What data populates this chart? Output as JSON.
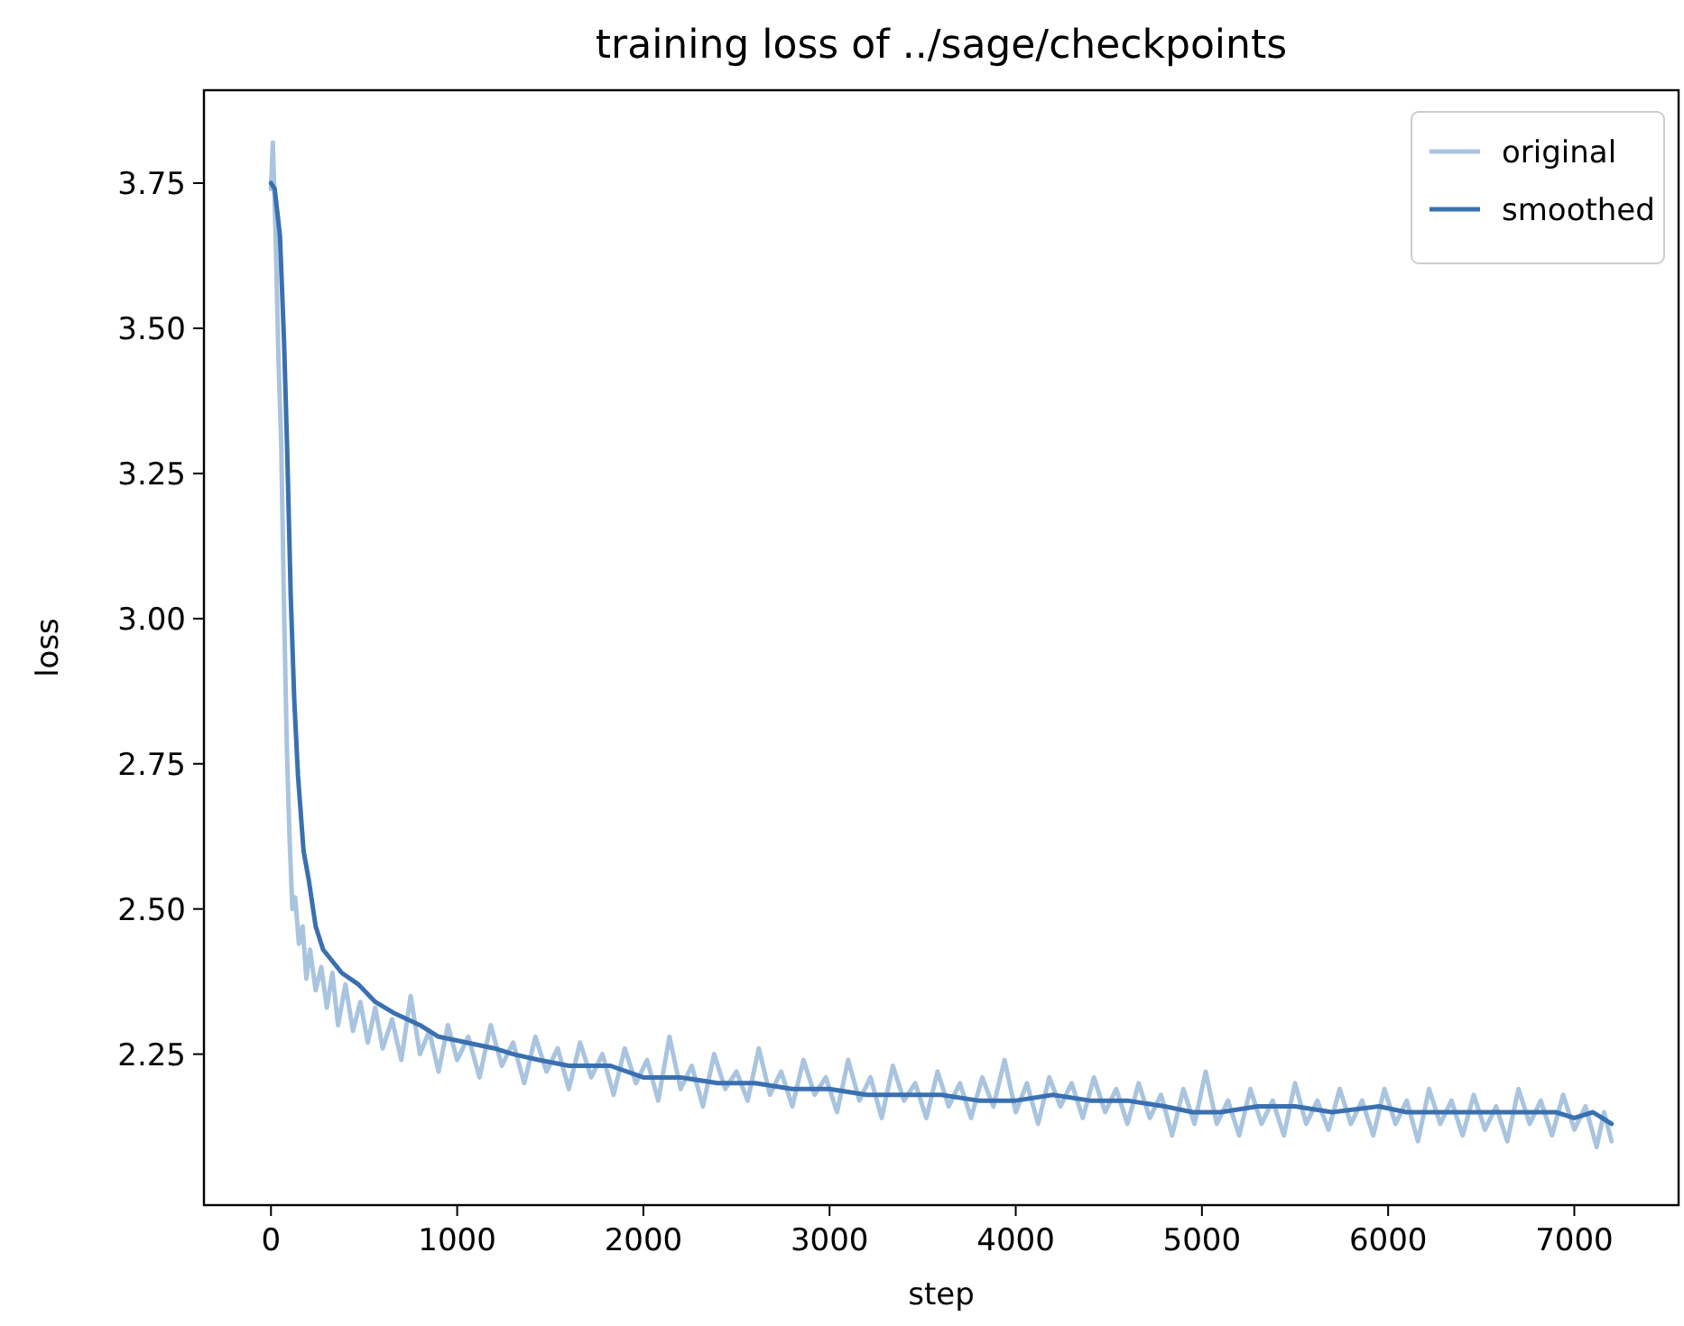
{
  "chart_data": {
    "type": "line",
    "title": "training loss of ../sage/checkpoints",
    "xlabel": "step",
    "ylabel": "loss",
    "xlim": [
      -360,
      7560
    ],
    "ylim": [
      1.99,
      3.91
    ],
    "xticks": [
      0,
      1000,
      2000,
      3000,
      4000,
      5000,
      6000,
      7000
    ],
    "yticks": [
      2.25,
      {
        "value": 2.5,
        "label": "2.50"
      },
      2.75,
      {
        "value": 3.0,
        "label": "3.00"
      },
      3.25,
      {
        "value": 3.5,
        "label": "3.50"
      },
      3.75
    ],
    "grid": false,
    "legend": "top right",
    "marker": "none",
    "line_style": "solid",
    "series": [
      {
        "name": "original",
        "color": "#a9c4de",
        "x": [
          0,
          10,
          25,
          40,
          55,
          70,
          85,
          100,
          115,
          130,
          150,
          170,
          190,
          210,
          240,
          270,
          300,
          330,
          360,
          400,
          440,
          480,
          520,
          560,
          600,
          650,
          700,
          750,
          800,
          850,
          900,
          950,
          1000,
          1060,
          1120,
          1180,
          1240,
          1300,
          1360,
          1420,
          1480,
          1540,
          1600,
          1660,
          1720,
          1780,
          1840,
          1900,
          1960,
          2020,
          2080,
          2140,
          2200,
          2260,
          2320,
          2380,
          2440,
          2500,
          2560,
          2620,
          2680,
          2740,
          2800,
          2860,
          2920,
          2980,
          3040,
          3100,
          3160,
          3220,
          3280,
          3340,
          3400,
          3460,
          3520,
          3580,
          3640,
          3700,
          3760,
          3820,
          3880,
          3940,
          4000,
          4060,
          4120,
          4180,
          4240,
          4300,
          4360,
          4420,
          4480,
          4540,
          4600,
          4660,
          4720,
          4780,
          4840,
          4900,
          4960,
          5020,
          5080,
          5140,
          5200,
          5260,
          5320,
          5380,
          5440,
          5500,
          5560,
          5620,
          5680,
          5740,
          5800,
          5860,
          5920,
          5980,
          6040,
          6100,
          6160,
          6220,
          6280,
          6340,
          6400,
          6460,
          6520,
          6580,
          6640,
          6700,
          6760,
          6820,
          6880,
          6940,
          7000,
          7060,
          7120,
          7160,
          7200
        ],
        "values": [
          3.74,
          3.82,
          3.66,
          3.45,
          3.3,
          3.02,
          2.78,
          2.62,
          2.5,
          2.52,
          2.44,
          2.47,
          2.38,
          2.43,
          2.36,
          2.4,
          2.33,
          2.39,
          2.3,
          2.37,
          2.29,
          2.34,
          2.27,
          2.33,
          2.26,
          2.31,
          2.24,
          2.35,
          2.25,
          2.29,
          2.22,
          2.3,
          2.24,
          2.28,
          2.21,
          2.3,
          2.23,
          2.27,
          2.2,
          2.28,
          2.22,
          2.26,
          2.19,
          2.27,
          2.21,
          2.25,
          2.18,
          2.26,
          2.2,
          2.24,
          2.17,
          2.28,
          2.19,
          2.23,
          2.16,
          2.25,
          2.19,
          2.22,
          2.17,
          2.26,
          2.18,
          2.22,
          2.16,
          2.24,
          2.18,
          2.21,
          2.15,
          2.24,
          2.17,
          2.21,
          2.14,
          2.23,
          2.17,
          2.2,
          2.14,
          2.22,
          2.16,
          2.2,
          2.14,
          2.21,
          2.16,
          2.24,
          2.15,
          2.2,
          2.13,
          2.21,
          2.16,
          2.2,
          2.14,
          2.21,
          2.15,
          2.19,
          2.13,
          2.2,
          2.14,
          2.18,
          2.11,
          2.19,
          2.13,
          2.22,
          2.13,
          2.17,
          2.11,
          2.19,
          2.13,
          2.17,
          2.11,
          2.2,
          2.13,
          2.17,
          2.12,
          2.19,
          2.13,
          2.17,
          2.11,
          2.19,
          2.13,
          2.17,
          2.1,
          2.19,
          2.13,
          2.17,
          2.11,
          2.18,
          2.12,
          2.16,
          2.1,
          2.19,
          2.13,
          2.17,
          2.11,
          2.18,
          2.12,
          2.16,
          2.09,
          2.15,
          2.1
        ]
      },
      {
        "name": "smoothed",
        "color": "#3a70b0",
        "x": [
          0,
          20,
          48,
          70,
          87,
          106,
          125,
          145,
          175,
          203,
          240,
          280,
          380,
          470,
          560,
          665,
          800,
          900,
          1050,
          1200,
          1300,
          1437,
          1600,
          1823,
          2000,
          2200,
          2400,
          2600,
          2800,
          3000,
          3200,
          3400,
          3600,
          3800,
          4000,
          4200,
          4400,
          4600,
          4800,
          4950,
          5100,
          5300,
          5500,
          5700,
          5950,
          6100,
          6300,
          6500,
          6700,
          6900,
          7000,
          7100,
          7200
        ],
        "values": [
          3.75,
          3.74,
          3.66,
          3.48,
          3.29,
          3.04,
          2.86,
          2.73,
          2.6,
          2.55,
          2.47,
          2.43,
          2.39,
          2.37,
          2.34,
          2.32,
          2.3,
          2.28,
          2.27,
          2.26,
          2.25,
          2.24,
          2.23,
          2.23,
          2.21,
          2.21,
          2.2,
          2.2,
          2.19,
          2.19,
          2.18,
          2.18,
          2.18,
          2.17,
          2.17,
          2.18,
          2.17,
          2.17,
          2.16,
          2.15,
          2.15,
          2.16,
          2.16,
          2.15,
          2.16,
          2.15,
          2.15,
          2.15,
          2.15,
          2.15,
          2.14,
          2.15,
          2.13
        ]
      }
    ]
  }
}
